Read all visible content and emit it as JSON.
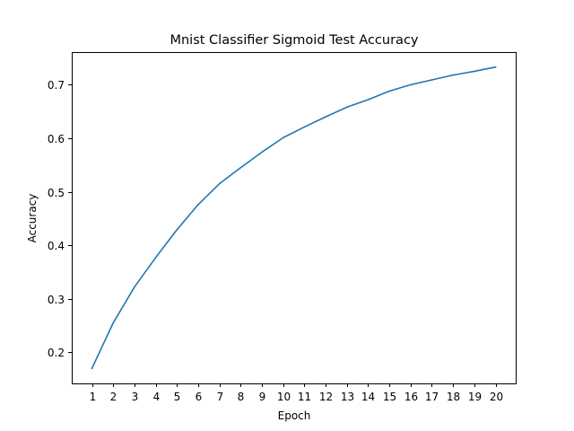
{
  "chart_data": {
    "type": "line",
    "title": "Mnist Classifier Sigmoid Test Accuracy",
    "xlabel": "Epoch",
    "ylabel": "Accuracy",
    "x": [
      1,
      2,
      3,
      4,
      5,
      6,
      7,
      8,
      9,
      10,
      11,
      12,
      13,
      14,
      15,
      16,
      17,
      18,
      19,
      20
    ],
    "xticks": [
      "1",
      "2",
      "3",
      "4",
      "5",
      "6",
      "7",
      "8",
      "9",
      "10",
      "11",
      "12",
      "13",
      "14",
      "15",
      "16",
      "17",
      "18",
      "19",
      "20"
    ],
    "yticks": [
      0.2,
      0.3,
      0.4,
      0.5,
      0.6,
      0.7
    ],
    "ytick_labels": [
      "0.2",
      "0.3",
      "0.4",
      "0.5",
      "0.6",
      "0.7"
    ],
    "xlim": [
      0.05,
      20.95
    ],
    "ylim": [
      0.142,
      0.761
    ],
    "grid": false,
    "series": [
      {
        "color": "#1f77b4",
        "values": [
          0.17,
          0.255,
          0.322,
          0.377,
          0.429,
          0.476,
          0.515,
          0.545,
          0.574,
          0.601,
          0.621,
          0.64,
          0.658,
          0.672,
          0.688,
          0.7,
          0.709,
          0.718,
          0.725,
          0.733
        ]
      }
    ]
  }
}
